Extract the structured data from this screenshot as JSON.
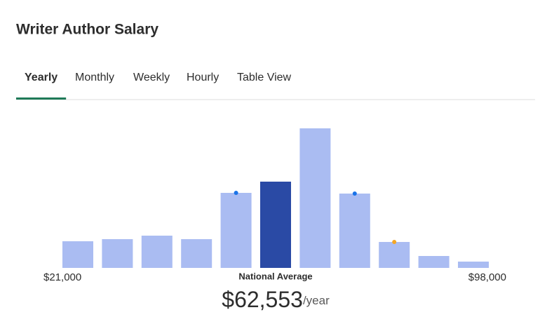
{
  "header": {
    "title": "Writer Author Salary"
  },
  "tabs": [
    {
      "label": "Yearly",
      "active": true
    },
    {
      "label": "Monthly",
      "active": false
    },
    {
      "label": "Weekly",
      "active": false
    },
    {
      "label": "Hourly",
      "active": false
    },
    {
      "label": "Table View",
      "active": false
    }
  ],
  "chart_data": {
    "type": "bar",
    "categories": [
      null,
      null,
      null,
      null,
      null,
      null,
      null,
      null,
      null,
      null,
      null
    ],
    "values": [
      38,
      41,
      46,
      41,
      107,
      123,
      199,
      106,
      37,
      17,
      9
    ],
    "colors": [
      "#aabcf2",
      "#aabcf2",
      "#aabcf2",
      "#aabcf2",
      "#aabcf2",
      "#2a4aa5",
      "#aabcf2",
      "#aabcf2",
      "#aabcf2",
      "#aabcf2",
      "#aabcf2"
    ],
    "dot_colors": [
      null,
      null,
      null,
      null,
      "#1a73e8",
      null,
      null,
      "#1a73e8",
      "#f5a623",
      null,
      null
    ],
    "min_label": "$21,000",
    "max_label": "$98,000",
    "average_label": "National Average",
    "average_value": "$62,553",
    "average_unit": "/year"
  }
}
